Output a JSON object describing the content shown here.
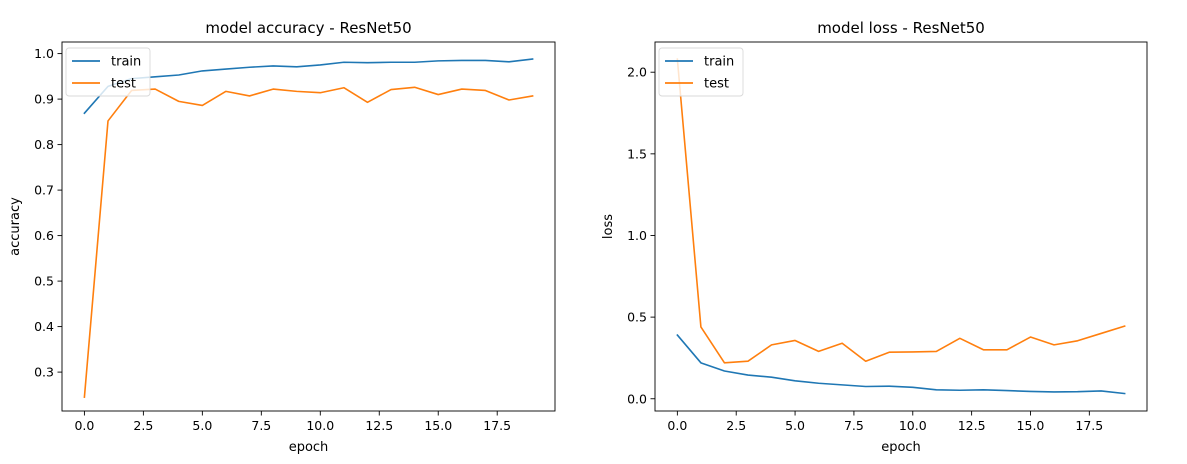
{
  "colors": {
    "train": "#1f77b4",
    "test": "#ff7f0e",
    "axis": "#000000",
    "legend_border": "#d9d9d9"
  },
  "chart_data": [
    {
      "type": "line",
      "title": "model accuracy - ResNet50",
      "xlabel": "epoch",
      "ylabel": "accuracy",
      "xlim": [
        -0.95,
        19.95
      ],
      "ylim": [
        0.2145,
        1.0255
      ],
      "xticks": [
        0,
        2.5,
        5,
        7.5,
        10,
        12.5,
        15,
        17.5
      ],
      "xtick_labels": [
        "0.0",
        "2.5",
        "5.0",
        "7.5",
        "10.0",
        "12.5",
        "15.0",
        "17.5"
      ],
      "yticks": [
        0.3,
        0.4,
        0.5,
        0.6,
        0.7,
        0.8,
        0.9,
        1.0
      ],
      "ytick_labels": [
        "0.3",
        "0.4",
        "0.5",
        "0.6",
        "0.7",
        "0.8",
        "0.9",
        "1.0"
      ],
      "grid": false,
      "legend": "top-left",
      "x": [
        0,
        1,
        2,
        3,
        4,
        5,
        6,
        7,
        8,
        9,
        10,
        11,
        12,
        13,
        14,
        15,
        16,
        17,
        18,
        19
      ],
      "series": [
        {
          "name": "train",
          "color": "#1f77b4",
          "values": [
            0.869,
            0.928,
            0.945,
            0.949,
            0.953,
            0.962,
            0.966,
            0.97,
            0.973,
            0.971,
            0.975,
            0.981,
            0.98,
            0.981,
            0.981,
            0.984,
            0.985,
            0.985,
            0.982,
            0.988
          ]
        },
        {
          "name": "test",
          "color": "#ff7f0e",
          "values": [
            0.245,
            0.852,
            0.919,
            0.922,
            0.895,
            0.886,
            0.917,
            0.907,
            0.922,
            0.917,
            0.914,
            0.925,
            0.893,
            0.921,
            0.926,
            0.91,
            0.922,
            0.919,
            0.898,
            0.907
          ]
        }
      ]
    },
    {
      "type": "line",
      "title": "model loss - ResNet50",
      "xlabel": "epoch",
      "ylabel": "loss",
      "xlim": [
        -0.95,
        19.95
      ],
      "ylim": [
        -0.075,
        2.185
      ],
      "xticks": [
        0,
        2.5,
        5,
        7.5,
        10,
        12.5,
        15,
        17.5
      ],
      "xtick_labels": [
        "0.0",
        "2.5",
        "5.0",
        "7.5",
        "10.0",
        "12.5",
        "15.0",
        "17.5"
      ],
      "yticks": [
        0.0,
        0.5,
        1.0,
        1.5,
        2.0
      ],
      "ytick_labels": [
        "0.0",
        "0.5",
        "1.0",
        "1.5",
        "2.0"
      ],
      "grid": false,
      "legend": "top-left",
      "x": [
        0,
        1,
        2,
        3,
        4,
        5,
        6,
        7,
        8,
        9,
        10,
        11,
        12,
        13,
        14,
        15,
        16,
        17,
        18,
        19
      ],
      "series": [
        {
          "name": "train",
          "color": "#1f77b4",
          "values": [
            0.39,
            0.22,
            0.17,
            0.145,
            0.132,
            0.11,
            0.095,
            0.085,
            0.075,
            0.077,
            0.07,
            0.055,
            0.052,
            0.055,
            0.05,
            0.045,
            0.042,
            0.043,
            0.048,
            0.032
          ]
        },
        {
          "name": "test",
          "color": "#ff7f0e",
          "values": [
            2.08,
            0.44,
            0.22,
            0.23,
            0.33,
            0.357,
            0.29,
            0.34,
            0.23,
            0.285,
            0.287,
            0.29,
            0.37,
            0.3,
            0.3,
            0.378,
            0.33,
            0.355,
            0.4,
            0.445
          ]
        }
      ]
    }
  ]
}
